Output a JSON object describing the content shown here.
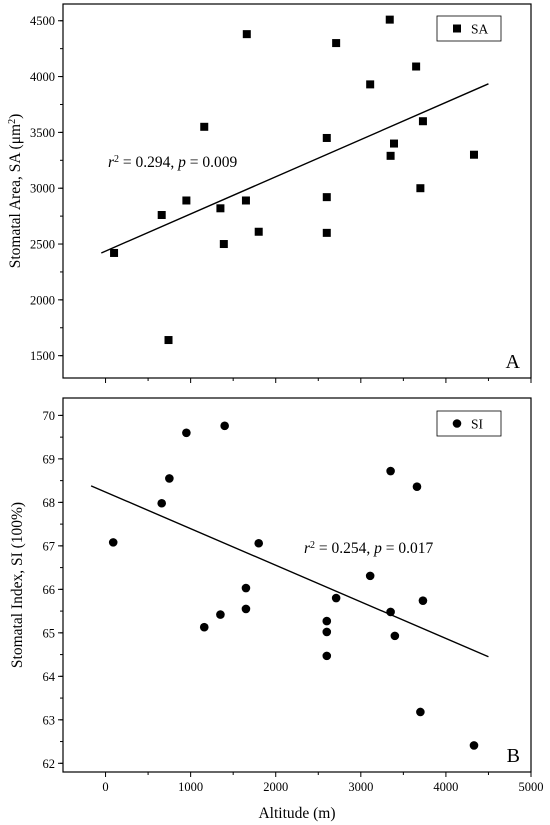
{
  "chart_data": [
    {
      "type": "scatter",
      "panel_label": "A",
      "ylabel_main": "Stomatal Area, SA (μm",
      "ylabel_sup": "2",
      "ylabel_end": ")",
      "xlabel": "",
      "xlim": [
        -500,
        5000
      ],
      "ylim": [
        1300,
        4650
      ],
      "xticks": [
        0,
        1000,
        2000,
        3000,
        4000,
        5000
      ],
      "yticks": [
        1500,
        2000,
        2500,
        3000,
        3500,
        4000,
        4500
      ],
      "show_x_tick_labels": false,
      "marker": "square",
      "legend": {
        "label": "SA",
        "position": "top-right"
      },
      "annotation": {
        "r": "r",
        "sup": "2",
        "mid": " = 0.294, ",
        "p": "p",
        "end": " = 0.009"
      },
      "fit_line": {
        "x": [
          -50,
          4500
        ],
        "y": [
          2420,
          3935
        ]
      },
      "series": [
        {
          "name": "SA",
          "x": [
            100,
            660,
            740,
            950,
            1160,
            1350,
            1390,
            1650,
            1660,
            1800,
            2600,
            2600,
            2600,
            2710,
            3110,
            3340,
            3350,
            3390,
            3650,
            3700,
            3730,
            4330
          ],
          "y": [
            2420,
            2760,
            1640,
            2890,
            3550,
            2820,
            2500,
            2890,
            4380,
            2610,
            3450,
            2920,
            2600,
            4300,
            3930,
            4510,
            3290,
            3400,
            4090,
            3000,
            3600,
            3300
          ]
        }
      ]
    },
    {
      "type": "scatter",
      "panel_label": "B",
      "ylabel": "Stomatal Index, SI (100%)",
      "xlabel": "Altitude (m)",
      "xlim": [
        -500,
        5000
      ],
      "ylim": [
        61.8,
        70.4
      ],
      "xticks": [
        0,
        1000,
        2000,
        3000,
        4000,
        5000
      ],
      "yticks": [
        62,
        63,
        64,
        65,
        66,
        67,
        68,
        69,
        70
      ],
      "show_x_tick_labels": true,
      "marker": "circle",
      "legend": {
        "label": "SI",
        "position": "top-right"
      },
      "annotation": {
        "r": "r",
        "sup": "2",
        "mid": " = 0.254, ",
        "p": "p",
        "end": " = 0.017"
      },
      "fit_line": {
        "x": [
          -170,
          4500
        ],
        "y": [
          68.38,
          64.45
        ]
      },
      "series": [
        {
          "name": "SI",
          "x": [
            90,
            660,
            750,
            950,
            1160,
            1350,
            1400,
            1650,
            1650,
            1800,
            2600,
            2600,
            2600,
            2710,
            3110,
            3350,
            3350,
            3400,
            3660,
            3700,
            3730,
            4330
          ],
          "y": [
            67.08,
            67.98,
            68.55,
            69.6,
            65.13,
            65.42,
            69.76,
            66.03,
            65.55,
            67.06,
            65.27,
            65.02,
            64.47,
            65.8,
            66.31,
            68.72,
            65.48,
            64.93,
            68.36,
            63.18,
            65.74,
            62.41
          ]
        }
      ]
    }
  ]
}
